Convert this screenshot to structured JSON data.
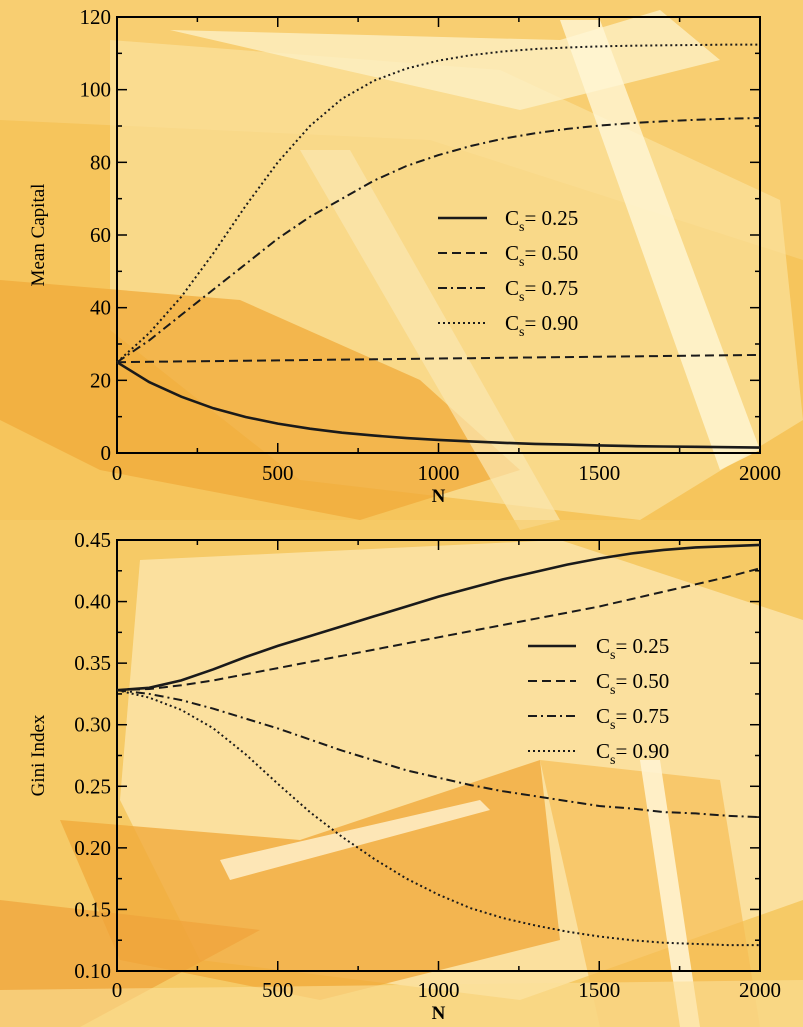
{
  "theme": {
    "background": "#f6c55c",
    "series_color": "#1a1a1a"
  },
  "chart_data": [
    {
      "type": "line",
      "title": "",
      "xlabel": "N",
      "ylabel": "Mean Capital",
      "xlim": [
        0,
        2000
      ],
      "ylim": [
        0,
        120
      ],
      "xticks": [
        0,
        500,
        1000,
        1500,
        2000
      ],
      "yticks": [
        0,
        20,
        40,
        60,
        80,
        100,
        120
      ],
      "grid": false,
      "legend_position": "center-right",
      "x": [
        0,
        100,
        200,
        300,
        400,
        500,
        600,
        700,
        800,
        900,
        1000,
        1100,
        1200,
        1300,
        1400,
        1500,
        1600,
        1700,
        1800,
        1900,
        2000
      ],
      "series": [
        {
          "name": "C_s = 0.25",
          "label_main": "C",
          "label_sub": "s",
          "label_rest": "= 0.25",
          "dash": "solid",
          "values": [
            25,
            19.5,
            15.5,
            12.3,
            9.9,
            8.1,
            6.7,
            5.6,
            4.8,
            4.1,
            3.6,
            3.2,
            2.8,
            2.5,
            2.3,
            2.1,
            1.9,
            1.8,
            1.7,
            1.6,
            1.5
          ]
        },
        {
          "name": "C_s = 0.50",
          "label_main": "C",
          "label_sub": "s",
          "label_rest": "= 0.50",
          "dash": "dashed",
          "values": [
            25,
            25.1,
            25.2,
            25.3,
            25.4,
            25.5,
            25.6,
            25.7,
            25.8,
            25.9,
            26.0,
            26.1,
            26.2,
            26.3,
            26.4,
            26.5,
            26.6,
            26.7,
            26.8,
            26.9,
            27.0
          ]
        },
        {
          "name": "C_s = 0.75",
          "label_main": "C",
          "label_sub": "s",
          "label_rest": "= 0.75",
          "dash": "dashdot",
          "values": [
            25,
            31,
            38,
            45,
            52,
            59,
            65,
            70,
            75,
            79,
            82,
            84.5,
            86.5,
            88,
            89.2,
            90.1,
            90.8,
            91.3,
            91.7,
            92.0,
            92.2
          ]
        },
        {
          "name": "C_s = 0.90",
          "label_main": "C",
          "label_sub": "s",
          "label_rest": "= 0.90",
          "dash": "dotted",
          "values": [
            25,
            33,
            43,
            55,
            68,
            80,
            90,
            97.5,
            102.5,
            105.8,
            108,
            109.5,
            110.5,
            111.2,
            111.6,
            111.9,
            112.1,
            112.2,
            112.3,
            112.4,
            112.4
          ]
        }
      ]
    },
    {
      "type": "line",
      "title": "",
      "xlabel": "N",
      "ylabel": "Gini Index",
      "xlim": [
        0,
        2000
      ],
      "ylim": [
        0.1,
        0.45
      ],
      "xticks": [
        0,
        500,
        1000,
        1500,
        2000
      ],
      "yticks": [
        0.1,
        0.15,
        0.2,
        0.25,
        0.3,
        0.35,
        0.4,
        0.45
      ],
      "grid": false,
      "legend_position": "upper-right",
      "x": [
        0,
        100,
        200,
        300,
        400,
        500,
        600,
        700,
        800,
        900,
        1000,
        1100,
        1200,
        1300,
        1400,
        1500,
        1600,
        1700,
        1800,
        1900,
        2000
      ],
      "series": [
        {
          "name": "C_s = 0.25",
          "label_main": "C",
          "label_sub": "s",
          "label_rest": "= 0.25",
          "dash": "solid",
          "values": [
            0.328,
            0.33,
            0.336,
            0.345,
            0.355,
            0.364,
            0.372,
            0.38,
            0.388,
            0.396,
            0.404,
            0.411,
            0.418,
            0.424,
            0.43,
            0.435,
            0.439,
            0.442,
            0.444,
            0.445,
            0.446
          ]
        },
        {
          "name": "C_s = 0.50",
          "label_main": "C",
          "label_sub": "s",
          "label_rest": "= 0.50",
          "dash": "dashed",
          "values": [
            0.328,
            0.329,
            0.332,
            0.336,
            0.341,
            0.346,
            0.351,
            0.356,
            0.361,
            0.366,
            0.371,
            0.376,
            0.381,
            0.386,
            0.391,
            0.396,
            0.402,
            0.408,
            0.414,
            0.42,
            0.427
          ]
        },
        {
          "name": "C_s = 0.75",
          "label_main": "C",
          "label_sub": "s",
          "label_rest": "= 0.75",
          "dash": "dashdot",
          "values": [
            0.328,
            0.325,
            0.32,
            0.313,
            0.305,
            0.297,
            0.288,
            0.279,
            0.271,
            0.263,
            0.257,
            0.251,
            0.246,
            0.242,
            0.238,
            0.234,
            0.232,
            0.229,
            0.228,
            0.226,
            0.225
          ]
        },
        {
          "name": "C_s = 0.90",
          "label_main": "C",
          "label_sub": "s",
          "label_rest": "= 0.90",
          "dash": "dotted",
          "values": [
            0.328,
            0.322,
            0.312,
            0.297,
            0.276,
            0.252,
            0.229,
            0.209,
            0.191,
            0.175,
            0.162,
            0.151,
            0.143,
            0.137,
            0.132,
            0.128,
            0.125,
            0.123,
            0.122,
            0.121,
            0.121
          ]
        }
      ]
    }
  ]
}
